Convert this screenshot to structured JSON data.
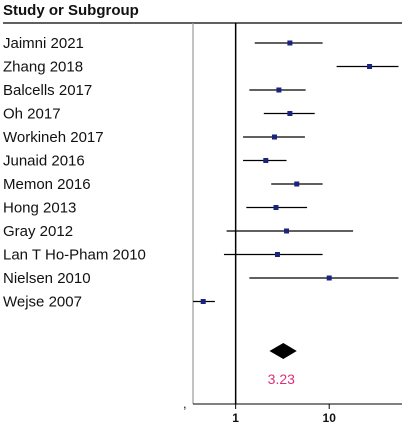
{
  "header": "Study or Subgroup",
  "chart_data": {
    "type": "forest",
    "title": "",
    "xscale": "log",
    "xlim": [
      0.35,
      60
    ],
    "reference_line": 1,
    "x_ticks": [
      {
        "value": 1,
        "label": "1"
      },
      {
        "value": 10,
        "label": "10"
      }
    ],
    "studies": [
      {
        "name": "Jaimni 2021",
        "or": 3.8,
        "ci": [
          1.6,
          8.5
        ]
      },
      {
        "name": "Zhang 2018",
        "or": 27.0,
        "ci": [
          12.0,
          55.0
        ]
      },
      {
        "name": "Balcells 2017",
        "or": 2.9,
        "ci": [
          1.4,
          5.6
        ]
      },
      {
        "name": "Oh 2017",
        "or": 3.8,
        "ci": [
          2.0,
          7.0
        ]
      },
      {
        "name": "Workineh 2017",
        "or": 2.6,
        "ci": [
          1.2,
          5.5
        ]
      },
      {
        "name": "Junaid 2016",
        "or": 2.1,
        "ci": [
          1.2,
          3.5
        ]
      },
      {
        "name": "Memon 2016",
        "or": 4.5,
        "ci": [
          2.4,
          8.5
        ]
      },
      {
        "name": "Hong 2013",
        "or": 2.7,
        "ci": [
          1.3,
          5.8
        ]
      },
      {
        "name": "Gray 2012",
        "or": 3.5,
        "ci": [
          0.8,
          18.0
        ]
      },
      {
        "name": "Lan T Ho-Pham  2010",
        "or": 2.8,
        "ci": [
          0.75,
          8.5
        ]
      },
      {
        "name": "Nielsen 2010",
        "or": 10.0,
        "ci": [
          1.4,
          55.0
        ]
      },
      {
        "name": "Wejse 2007",
        "or": 0.45,
        "ci": [
          0.35,
          0.6
        ]
      }
    ],
    "pooled": {
      "value": 3.23,
      "label": "3.23",
      "ci": [
        2.3,
        4.5
      ]
    }
  },
  "colors": {
    "marker": "#1a237e",
    "pooled_label": "#d8327a",
    "lines": "#000000",
    "left_axis": "#999999"
  }
}
